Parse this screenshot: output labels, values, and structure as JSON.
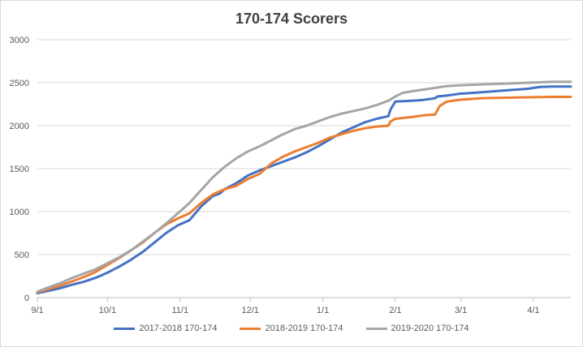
{
  "chart_data": {
    "type": "line",
    "title": "170-174 Scorers",
    "xlabel": "",
    "ylabel": "",
    "ylim": [
      0,
      3000
    ],
    "yticks": [
      0,
      500,
      1000,
      1500,
      2000,
      2500,
      3000
    ],
    "x_tick_labels": [
      "9/1",
      "10/1",
      "11/1",
      "12/1",
      "1/1",
      "2/1",
      "3/1",
      "4/1"
    ],
    "x_unit": "days since 9/1",
    "x_tick_positions": [
      0,
      30,
      61,
      91,
      122,
      153,
      181,
      212
    ],
    "xlim": [
      0,
      228
    ],
    "grid": "horizontal",
    "legend_position": "bottom",
    "series": [
      {
        "name": "2017-2018 170-174",
        "color": "#4472C4",
        "x": [
          0,
          5,
          10,
          15,
          20,
          25,
          30,
          35,
          40,
          45,
          50,
          55,
          60,
          65,
          70,
          75,
          78,
          80,
          85,
          90,
          95,
          100,
          105,
          110,
          115,
          120,
          125,
          130,
          135,
          140,
          145,
          150,
          151,
          153,
          160,
          165,
          170,
          171,
          175,
          180,
          185,
          190,
          195,
          200,
          205,
          210,
          212,
          215,
          220,
          228
        ],
        "y": [
          50,
          80,
          110,
          150,
          185,
          230,
          290,
          360,
          440,
          530,
          640,
          750,
          840,
          900,
          1060,
          1180,
          1210,
          1260,
          1330,
          1420,
          1480,
          1530,
          1580,
          1630,
          1690,
          1760,
          1840,
          1920,
          1980,
          2040,
          2080,
          2110,
          2190,
          2280,
          2290,
          2300,
          2320,
          2340,
          2350,
          2370,
          2380,
          2390,
          2400,
          2410,
          2420,
          2430,
          2440,
          2450,
          2455,
          2455
        ]
      },
      {
        "name": "2018-2019 170-174",
        "color": "#ED7D31",
        "x": [
          0,
          5,
          10,
          15,
          20,
          25,
          30,
          35,
          40,
          45,
          50,
          55,
          60,
          65,
          70,
          75,
          80,
          85,
          90,
          95,
          100,
          105,
          110,
          115,
          120,
          125,
          130,
          135,
          140,
          145,
          150,
          151,
          153,
          160,
          165,
          170,
          172,
          175,
          180,
          185,
          190,
          200,
          210,
          220,
          228
        ],
        "y": [
          60,
          100,
          140,
          190,
          240,
          300,
          380,
          460,
          550,
          640,
          750,
          850,
          920,
          980,
          1100,
          1200,
          1260,
          1300,
          1380,
          1440,
          1560,
          1640,
          1700,
          1750,
          1800,
          1860,
          1900,
          1940,
          1970,
          1990,
          2000,
          2050,
          2080,
          2100,
          2120,
          2130,
          2230,
          2280,
          2300,
          2310,
          2320,
          2325,
          2330,
          2335,
          2335
        ]
      },
      {
        "name": "2019-2020 170-174",
        "color": "#A5A5A5",
        "x": [
          0,
          5,
          10,
          15,
          20,
          25,
          30,
          35,
          40,
          45,
          50,
          55,
          60,
          65,
          70,
          75,
          80,
          85,
          90,
          95,
          100,
          105,
          110,
          115,
          120,
          125,
          130,
          135,
          140,
          145,
          150,
          153,
          156,
          160,
          165,
          170,
          175,
          180,
          190,
          200,
          210,
          220,
          228
        ],
        "y": [
          70,
          120,
          170,
          230,
          280,
          330,
          400,
          470,
          550,
          650,
          750,
          860,
          980,
          1100,
          1250,
          1400,
          1520,
          1620,
          1700,
          1760,
          1830,
          1900,
          1960,
          2000,
          2050,
          2100,
          2140,
          2170,
          2200,
          2240,
          2290,
          2340,
          2380,
          2400,
          2420,
          2440,
          2460,
          2470,
          2480,
          2490,
          2500,
          2510,
          2510
        ]
      }
    ]
  }
}
